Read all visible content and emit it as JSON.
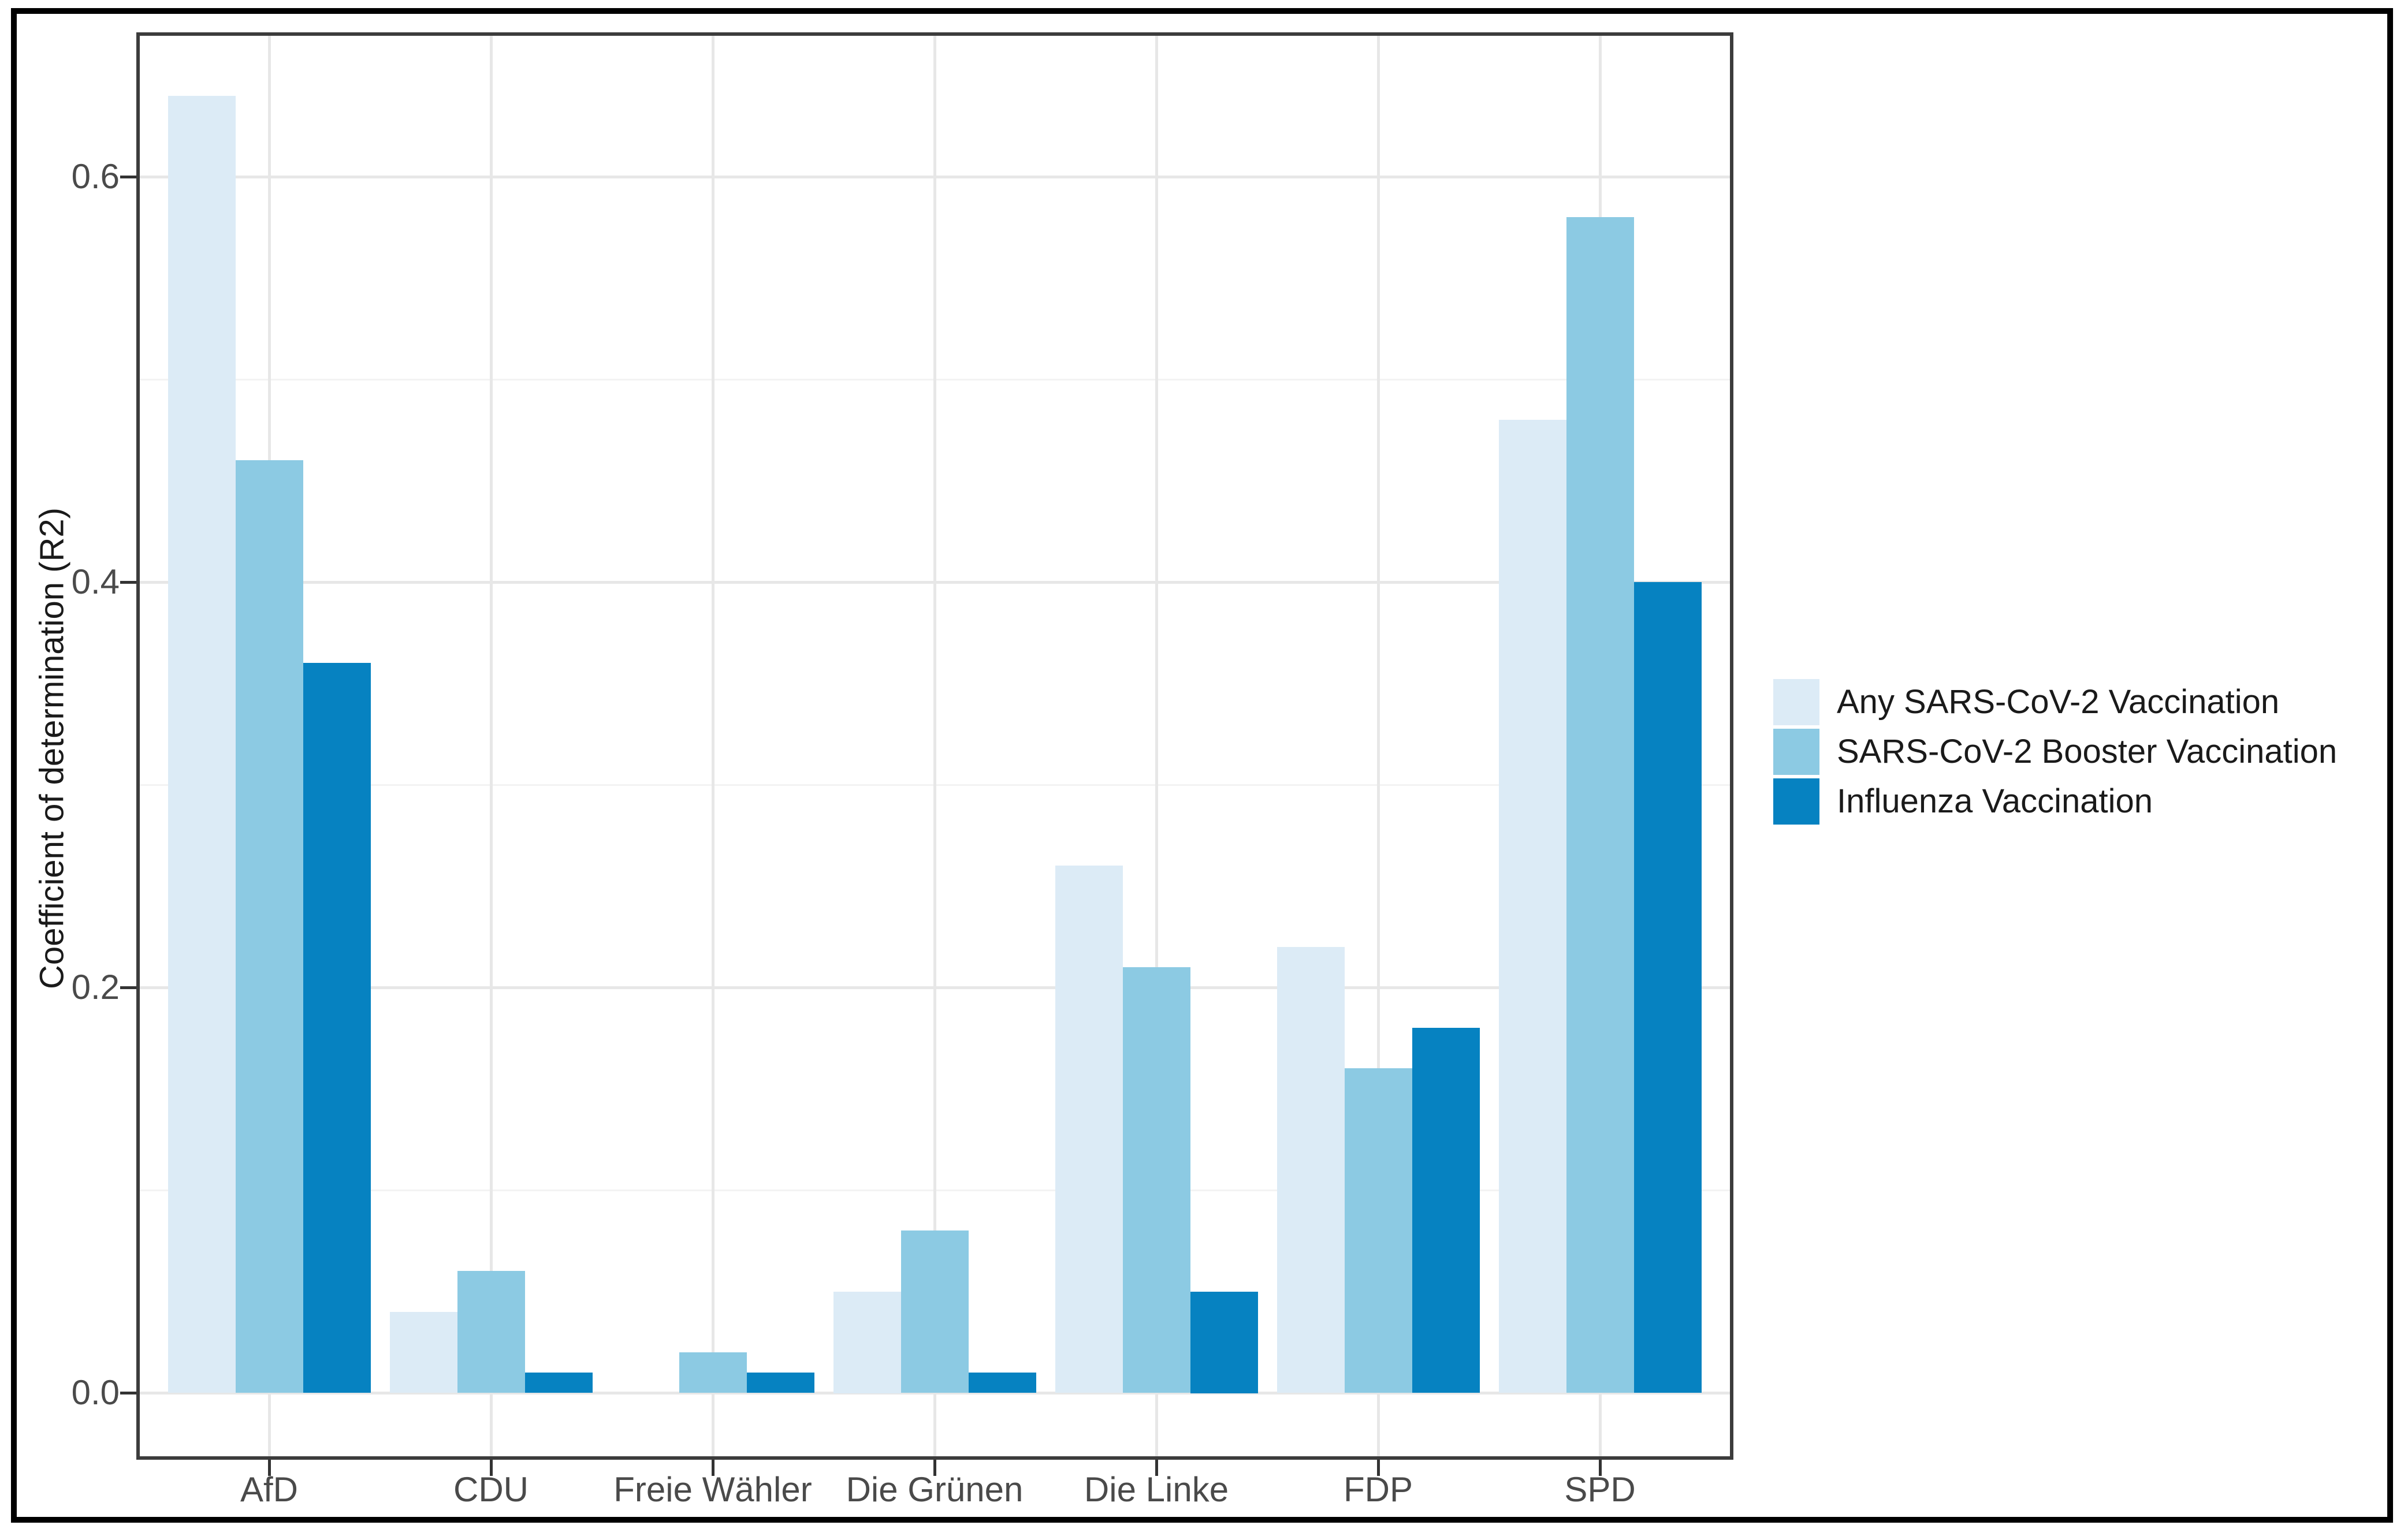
{
  "chart_data": {
    "type": "bar",
    "bar_grouping": "dodged",
    "title": "",
    "xlabel": "",
    "ylabel": "Coefficient of determination (R2)",
    "categories": [
      "AfD",
      "CDU",
      "Freie Wähler",
      "Die Grünen",
      "Die Linke",
      "FDP",
      "SPD"
    ],
    "series": [
      {
        "name": "Any SARS-CoV-2 Vaccination",
        "color": "#dcebf6",
        "values": [
          0.64,
          0.04,
          0,
          0.05,
          0.26,
          0.22,
          0.48
        ]
      },
      {
        "name": "SARS-CoV-2 Booster Vaccination",
        "color": "#8ccae3",
        "values": [
          0.46,
          0.06,
          0.02,
          0.08,
          0.21,
          0.16,
          0.58
        ]
      },
      {
        "name": "Influenza Vaccination",
        "color": "#0682c1",
        "values": [
          0.36,
          0.01,
          0.01,
          0.01,
          0.05,
          0.18,
          0.4
        ]
      }
    ],
    "y_ticks": [
      {
        "label": "0.0",
        "value": 0.0
      },
      {
        "label": "0.2",
        "value": 0.2
      },
      {
        "label": "0.4",
        "value": 0.4
      },
      {
        "label": "0.6",
        "value": 0.6
      }
    ],
    "y_minor_ticks": [
      0.1,
      0.3,
      0.5
    ],
    "ylim": [
      0,
      0.671
    ],
    "grid": "horizontal major+minor, vertical major at category centers",
    "legend_position": "right-center"
  },
  "colors": {
    "background": "#ffffff",
    "frame_border": "#000000",
    "panel_border": "#3c3c3c",
    "grid_major": "#e7e7e7",
    "grid_minor": "#f3f3f3",
    "tick_mark": "#333333",
    "tick_label_text": "#4a4a4a",
    "axis_title_text": "#1a1a1a",
    "legend_text": "#1a1a1a"
  }
}
